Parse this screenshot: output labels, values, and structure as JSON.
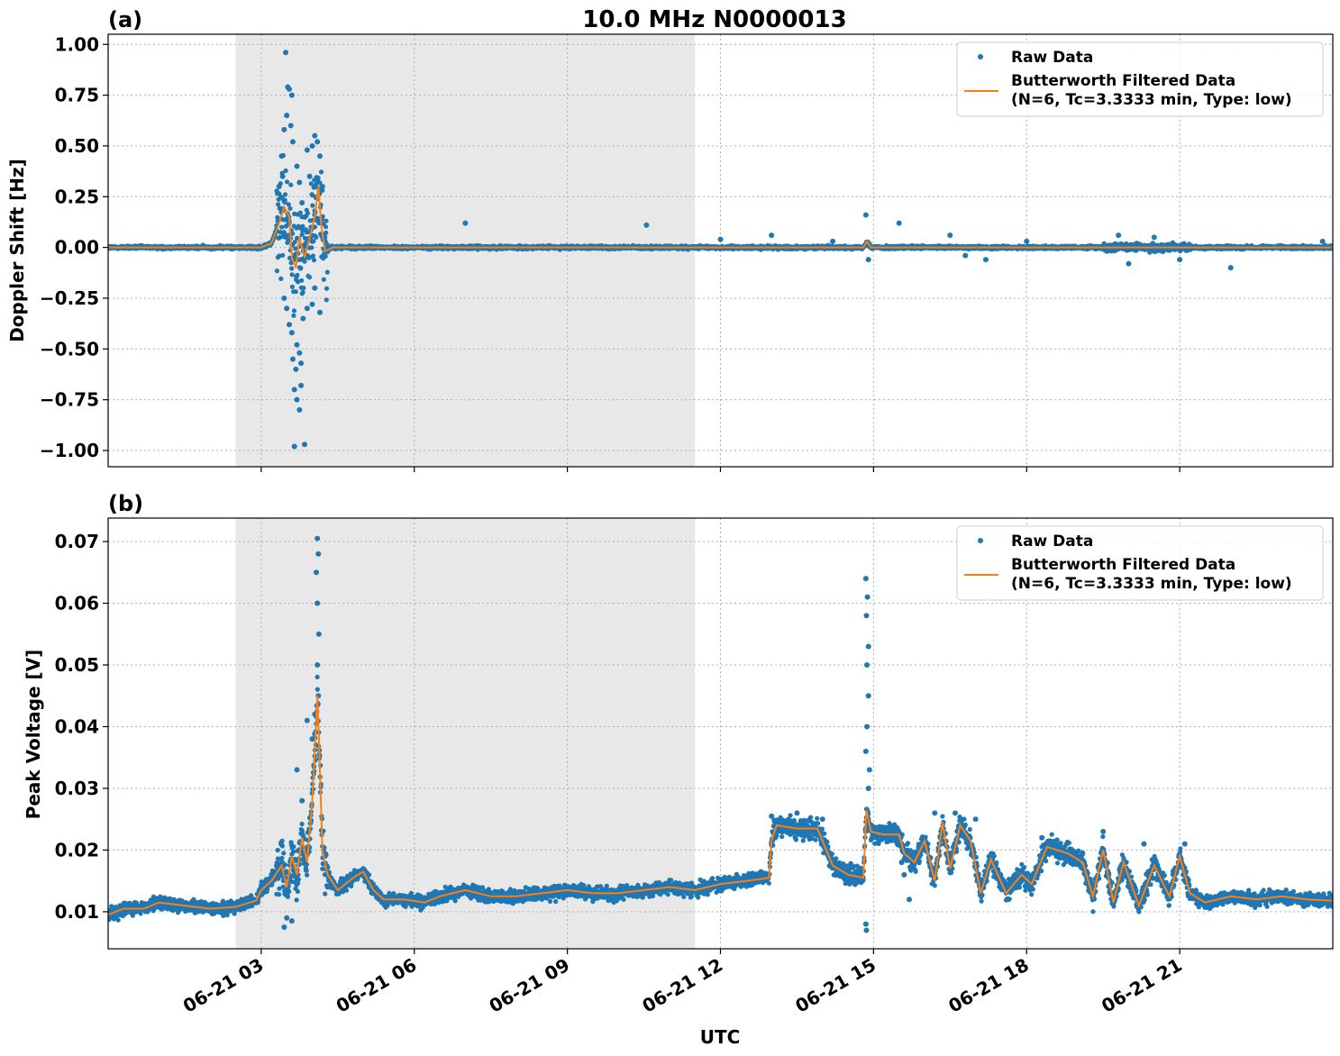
{
  "figure": {
    "title": "10.0 MHz N0000013",
    "xlabel": "UTC",
    "colors": {
      "raw": "#1f77b4",
      "filtered": "#ff7f0e",
      "shade": "#e8e8e8",
      "grid": "#b0b0b0"
    }
  },
  "chart_data": [
    {
      "panel_label": "(a)",
      "type": "scatter",
      "ylabel": "Doppler Shift [Hz]",
      "xlim": [
        "06-21 00:00",
        "06-22 00:00"
      ],
      "ylim": [
        -1.08,
        1.05
      ],
      "yticks": [
        1.0,
        0.75,
        0.5,
        0.25,
        0.0,
        -0.25,
        -0.5,
        -0.75,
        -1.0
      ],
      "ytick_labels": [
        "1.00",
        "0.75",
        "0.50",
        "0.25",
        "0.00",
        "−0.25",
        "−0.50",
        "−0.75",
        "−1.00"
      ],
      "xticks": [
        "06-21 03",
        "06-21 06",
        "06-21 09",
        "06-21 12",
        "06-21 15",
        "06-21 18",
        "06-21 21"
      ],
      "shaded_span_hours": [
        2.5,
        11.5
      ],
      "grid": true,
      "legend_position": "top-right",
      "legend": [
        "Raw Data",
        "Butterworth Filtered Data\n(N=6, Tc=3.3333 min, Type: low)"
      ],
      "series": [
        {
          "name": "Raw Data",
          "style": "points",
          "points_hours": [
            [
              3.48,
              0.96
            ],
            [
              3.52,
              0.79
            ],
            [
              3.55,
              0.78
            ],
            [
              3.6,
              0.75
            ],
            [
              3.5,
              0.65
            ],
            [
              3.45,
              0.58
            ],
            [
              3.58,
              0.6
            ],
            [
              3.62,
              0.52
            ],
            [
              3.4,
              0.45
            ],
            [
              3.42,
              0.35
            ],
            [
              3.35,
              0.3
            ],
            [
              3.7,
              0.4
            ],
            [
              3.75,
              0.32
            ],
            [
              3.8,
              0.22
            ],
            [
              3.9,
              0.48
            ],
            [
              4.0,
              0.5
            ],
            [
              4.05,
              0.55
            ],
            [
              4.1,
              0.52
            ],
            [
              4.15,
              0.45
            ],
            [
              3.95,
              0.35
            ],
            [
              3.85,
              0.15
            ],
            [
              4.2,
              0.3
            ],
            [
              3.45,
              -0.25
            ],
            [
              3.5,
              -0.3
            ],
            [
              3.55,
              -0.38
            ],
            [
              3.6,
              -0.42
            ],
            [
              3.62,
              -0.55
            ],
            [
              3.68,
              -0.6
            ],
            [
              3.7,
              -0.48
            ],
            [
              3.75,
              -0.52
            ],
            [
              3.78,
              -0.57
            ],
            [
              3.82,
              -0.35
            ],
            [
              3.9,
              -0.3
            ],
            [
              4.0,
              -0.28
            ],
            [
              4.05,
              -0.2
            ],
            [
              4.15,
              -0.32
            ],
            [
              3.65,
              -0.7
            ],
            [
              3.7,
              -0.75
            ],
            [
              3.75,
              -0.8
            ],
            [
              3.78,
              -0.68
            ],
            [
              3.65,
              -0.98
            ],
            [
              3.85,
              -0.97
            ],
            [
              7.0,
              0.12
            ],
            [
              10.55,
              0.11
            ],
            [
              14.85,
              0.16
            ],
            [
              14.9,
              -0.06
            ],
            [
              15.5,
              0.12
            ],
            [
              12.0,
              0.04
            ],
            [
              13.0,
              0.06
            ],
            [
              14.2,
              0.03
            ],
            [
              16.5,
              0.06
            ],
            [
              16.8,
              -0.04
            ],
            [
              17.2,
              -0.06
            ],
            [
              18.0,
              0.03
            ],
            [
              19.8,
              0.06
            ],
            [
              20.0,
              -0.08
            ],
            [
              20.5,
              0.05
            ],
            [
              21.0,
              -0.06
            ],
            [
              22.0,
              -0.1
            ],
            [
              23.8,
              0.03
            ]
          ]
        },
        {
          "name": "Butterworth Filtered Data\n(N=6, Tc=3.3333 min, Type: low)",
          "style": "line",
          "points_hours": [
            [
              0.0,
              0.0
            ],
            [
              3.0,
              0.0
            ],
            [
              3.2,
              0.02
            ],
            [
              3.35,
              0.12
            ],
            [
              3.45,
              0.2
            ],
            [
              3.55,
              0.15
            ],
            [
              3.6,
              -0.05
            ],
            [
              3.68,
              -0.1
            ],
            [
              3.75,
              0.05
            ],
            [
              3.85,
              -0.05
            ],
            [
              3.95,
              0.05
            ],
            [
              4.05,
              0.15
            ],
            [
              4.12,
              0.3
            ],
            [
              4.18,
              0.1
            ],
            [
              4.25,
              -0.02
            ],
            [
              4.4,
              0.0
            ],
            [
              14.8,
              0.0
            ],
            [
              14.87,
              0.03
            ],
            [
              14.95,
              0.0
            ],
            [
              24.0,
              0.0
            ]
          ]
        }
      ]
    },
    {
      "panel_label": "(b)",
      "type": "scatter",
      "ylabel": "Peak Voltage [V]",
      "xlim": [
        "06-21 00:00",
        "06-22 00:00"
      ],
      "ylim": [
        0.004,
        0.0738
      ],
      "yticks": [
        0.07,
        0.06,
        0.05,
        0.04,
        0.03,
        0.02,
        0.01
      ],
      "ytick_labels": [
        "0.07",
        "0.06",
        "0.05",
        "0.04",
        "0.03",
        "0.02",
        "0.01"
      ],
      "xticks": [
        "06-21 03",
        "06-21 06",
        "06-21 09",
        "06-21 12",
        "06-21 15",
        "06-21 18",
        "06-21 21"
      ],
      "shaded_span_hours": [
        2.5,
        11.5
      ],
      "grid": true,
      "legend_position": "top-right",
      "legend": [
        "Raw Data",
        "Butterworth Filtered Data\n(N=6, Tc=3.3333 min, Type: low)"
      ],
      "series": [
        {
          "name": "Raw Data",
          "style": "points",
          "points_hours": [
            [
              4.1,
              0.0705
            ],
            [
              4.12,
              0.068
            ],
            [
              4.08,
              0.065
            ],
            [
              4.1,
              0.06
            ],
            [
              4.13,
              0.055
            ],
            [
              4.1,
              0.05
            ],
            [
              4.12,
              0.045
            ],
            [
              4.05,
              0.042
            ],
            [
              3.9,
              0.041
            ],
            [
              4.0,
              0.038
            ],
            [
              3.7,
              0.033
            ],
            [
              3.8,
              0.028
            ],
            [
              3.5,
              0.009
            ],
            [
              3.6,
              0.0085
            ],
            [
              3.45,
              0.0075
            ],
            [
              14.85,
              0.064
            ],
            [
              14.88,
              0.061
            ],
            [
              14.86,
              0.058
            ],
            [
              14.9,
              0.053
            ],
            [
              14.87,
              0.05
            ],
            [
              14.9,
              0.045
            ],
            [
              14.87,
              0.04
            ],
            [
              14.85,
              0.036
            ],
            [
              14.92,
              0.033
            ],
            [
              14.9,
              0.03
            ],
            [
              14.85,
              0.008
            ],
            [
              14.86,
              0.007
            ],
            [
              15.55,
              0.018
            ],
            [
              15.6,
              0.016
            ],
            [
              15.7,
              0.012
            ],
            [
              16.2,
              0.026
            ],
            [
              16.6,
              0.026
            ],
            [
              17.0,
              0.025
            ],
            [
              18.3,
              0.022
            ],
            [
              19.5,
              0.023
            ],
            [
              20.3,
              0.021
            ],
            [
              21.1,
              0.021
            ],
            [
              13.0,
              0.0255
            ],
            [
              13.5,
              0.026
            ],
            [
              14.0,
              0.025
            ]
          ]
        },
        {
          "name": "Butterworth Filtered Data\n(N=6, Tc=3.3333 min, Type: low)",
          "style": "line",
          "points_hours": [
            [
              0.0,
              0.0095
            ],
            [
              0.3,
              0.0105
            ],
            [
              0.7,
              0.0105
            ],
            [
              1.0,
              0.0115
            ],
            [
              1.5,
              0.011
            ],
            [
              2.0,
              0.0105
            ],
            [
              2.5,
              0.0108
            ],
            [
              2.9,
              0.0118
            ],
            [
              3.0,
              0.0135
            ],
            [
              3.2,
              0.015
            ],
            [
              3.4,
              0.0175
            ],
            [
              3.5,
              0.014
            ],
            [
              3.6,
              0.019
            ],
            [
              3.7,
              0.016
            ],
            [
              3.8,
              0.022
            ],
            [
              3.9,
              0.018
            ],
            [
              4.0,
              0.028
            ],
            [
              4.05,
              0.036
            ],
            [
              4.1,
              0.045
            ],
            [
              4.13,
              0.038
            ],
            [
              4.2,
              0.02
            ],
            [
              4.3,
              0.016
            ],
            [
              4.5,
              0.0135
            ],
            [
              4.8,
              0.0155
            ],
            [
              5.0,
              0.0165
            ],
            [
              5.2,
              0.0135
            ],
            [
              5.4,
              0.012
            ],
            [
              5.8,
              0.012
            ],
            [
              6.2,
              0.0115
            ],
            [
              6.5,
              0.0125
            ],
            [
              7.0,
              0.0135
            ],
            [
              7.5,
              0.0125
            ],
            [
              8.0,
              0.0125
            ],
            [
              8.5,
              0.013
            ],
            [
              9.0,
              0.0135
            ],
            [
              9.5,
              0.013
            ],
            [
              10.0,
              0.013
            ],
            [
              10.5,
              0.0135
            ],
            [
              11.0,
              0.014
            ],
            [
              11.5,
              0.0135
            ],
            [
              12.0,
              0.0145
            ],
            [
              12.5,
              0.015
            ],
            [
              12.95,
              0.0155
            ],
            [
              13.0,
              0.0215
            ],
            [
              13.1,
              0.024
            ],
            [
              13.5,
              0.0235
            ],
            [
              13.9,
              0.0235
            ],
            [
              14.2,
              0.0175
            ],
            [
              14.5,
              0.016
            ],
            [
              14.8,
              0.0155
            ],
            [
              14.86,
              0.0265
            ],
            [
              14.95,
              0.023
            ],
            [
              15.2,
              0.0225
            ],
            [
              15.5,
              0.0225
            ],
            [
              15.6,
              0.0195
            ],
            [
              15.8,
              0.018
            ],
            [
              16.0,
              0.0215
            ],
            [
              16.2,
              0.015
            ],
            [
              16.35,
              0.0245
            ],
            [
              16.5,
              0.017
            ],
            [
              16.7,
              0.024
            ],
            [
              16.9,
              0.0215
            ],
            [
              17.1,
              0.013
            ],
            [
              17.3,
              0.0185
            ],
            [
              17.6,
              0.013
            ],
            [
              17.9,
              0.016
            ],
            [
              18.1,
              0.0145
            ],
            [
              18.4,
              0.0205
            ],
            [
              18.8,
              0.0195
            ],
            [
              19.1,
              0.018
            ],
            [
              19.3,
              0.0125
            ],
            [
              19.5,
              0.02
            ],
            [
              19.7,
              0.0115
            ],
            [
              19.9,
              0.018
            ],
            [
              20.2,
              0.011
            ],
            [
              20.5,
              0.0175
            ],
            [
              20.8,
              0.0125
            ],
            [
              21.0,
              0.019
            ],
            [
              21.2,
              0.013
            ],
            [
              21.5,
              0.0115
            ],
            [
              22.0,
              0.0125
            ],
            [
              22.5,
              0.012
            ],
            [
              23.0,
              0.0125
            ],
            [
              23.5,
              0.012
            ],
            [
              24.0,
              0.0118
            ]
          ]
        }
      ]
    }
  ]
}
